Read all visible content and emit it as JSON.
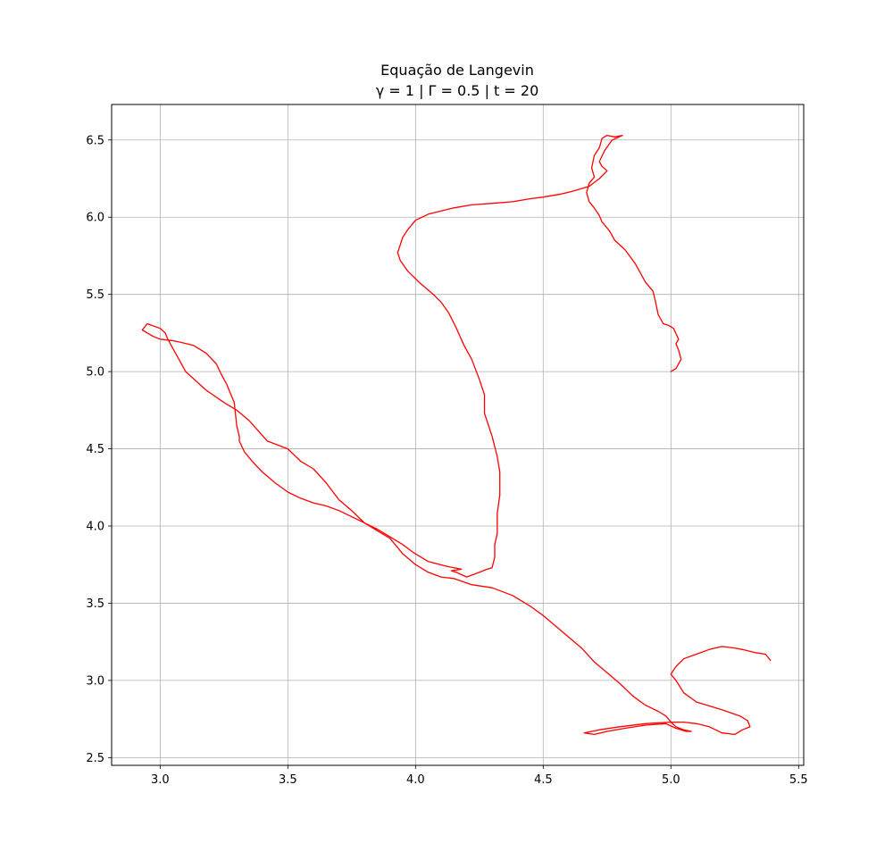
{
  "chart_data": {
    "type": "line",
    "title_line1": "Equação de Langevin",
    "title_line2": "γ = 1 | Γ = 0.5 | t = 20",
    "xlabel": "",
    "ylabel": "",
    "xlim": [
      2.81,
      5.52
    ],
    "ylim": [
      2.45,
      6.73
    ],
    "xticks": [
      3.0,
      3.5,
      4.0,
      4.5,
      5.0,
      5.5
    ],
    "xtick_labels": [
      "3.0",
      "3.5",
      "4.0",
      "4.5",
      "5.0",
      "5.5"
    ],
    "yticks": [
      2.5,
      3.0,
      3.5,
      4.0,
      4.5,
      5.0,
      5.5,
      6.0,
      6.5
    ],
    "ytick_labels": [
      "2.5",
      "3.0",
      "3.5",
      "4.0",
      "4.5",
      "5.0",
      "5.5",
      "6.0",
      "6.5"
    ],
    "grid": true,
    "legend": "none",
    "series": [
      {
        "color": "#ff0000",
        "x": [
          5.0,
          5.02,
          5.04,
          5.03,
          5.02,
          5.03,
          5.01,
          4.99,
          4.97,
          4.95,
          4.94,
          4.93,
          4.9,
          4.86,
          4.82,
          4.78,
          4.76,
          4.73,
          4.72,
          4.7,
          4.68,
          4.67,
          4.68,
          4.7,
          4.69,
          4.7,
          4.72,
          4.73,
          4.75,
          4.78,
          4.81,
          4.77,
          4.74,
          4.72,
          4.73,
          4.75,
          4.72,
          4.68,
          4.62,
          4.57,
          4.5,
          4.45,
          4.38,
          4.3,
          4.22,
          4.15,
          4.1,
          4.05,
          4.0,
          3.97,
          3.95,
          3.93,
          3.94,
          3.97,
          4.02,
          4.07,
          4.1,
          4.13,
          4.16,
          4.19,
          4.22,
          4.25,
          4.27,
          4.27,
          4.28,
          4.3,
          4.32,
          4.33,
          4.33,
          4.32,
          4.32,
          4.31,
          4.31,
          4.3,
          4.28,
          4.25,
          4.2,
          4.16,
          4.14,
          4.18,
          4.12,
          4.05,
          3.99,
          3.95,
          3.9,
          3.85,
          3.8,
          3.75,
          3.7,
          3.65,
          3.6,
          3.55,
          3.5,
          3.45,
          3.4,
          3.36,
          3.33,
          3.31,
          3.31,
          3.3,
          3.29,
          3.26,
          3.24,
          3.22,
          3.18,
          3.13,
          3.08,
          3.05,
          3.0,
          2.97,
          2.95,
          2.93,
          2.95,
          3.0,
          3.02,
          3.03,
          3.05,
          3.1,
          3.18,
          3.25,
          3.3,
          3.35,
          3.42,
          3.5,
          3.55,
          3.6,
          3.65,
          3.7,
          3.75,
          3.8,
          3.85,
          3.9,
          3.95,
          4.0,
          4.05,
          4.1,
          4.15,
          4.22,
          4.3,
          4.38,
          4.45,
          4.5,
          4.55,
          4.6,
          4.65,
          4.7,
          4.75,
          4.8,
          4.85,
          4.9,
          4.95,
          4.98,
          5.0,
          5.02,
          5.05,
          5.08,
          5.06,
          5.02,
          4.98,
          4.9,
          4.82,
          4.75,
          4.7,
          4.66,
          4.72,
          4.8,
          4.9,
          5.0,
          5.05,
          5.1,
          5.15,
          5.2,
          5.25,
          5.28,
          5.31,
          5.3,
          5.27,
          5.2,
          5.1,
          5.05,
          5.02,
          5.0,
          5.02,
          5.05,
          5.1,
          5.15,
          5.2,
          5.25,
          5.28,
          5.33,
          5.37,
          5.38,
          5.39
        ]
      }
    ]
  }
}
